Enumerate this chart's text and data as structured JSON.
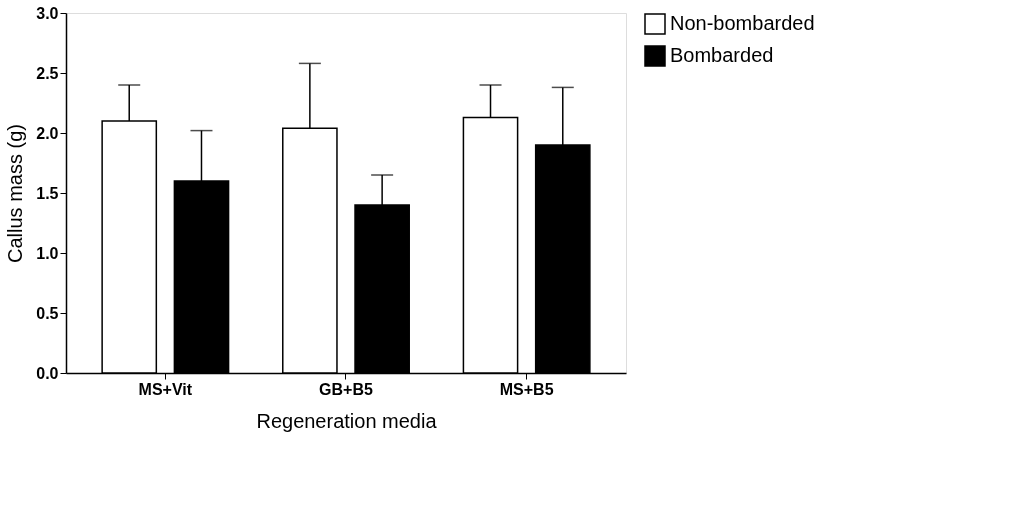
{
  "chart_data": {
    "type": "bar",
    "xlabel": "Regeneration media",
    "ylabel": "Callus mass (g)",
    "categories": [
      "MS+Vit",
      "GB+B5",
      "MS+B5"
    ],
    "series": [
      {
        "name": "Non-bombarded",
        "color": "#ffffff",
        "values": [
          2.1,
          2.04,
          2.13
        ],
        "errors": [
          [
            2.1,
            2.4
          ],
          [
            2.04,
            2.58
          ],
          [
            2.13,
            2.4
          ]
        ]
      },
      {
        "name": "Bombarded",
        "color": "#000000",
        "values": [
          1.6,
          1.4,
          1.9
        ],
        "errors": [
          [
            1.6,
            2.02
          ],
          [
            1.4,
            1.65
          ],
          [
            1.9,
            2.38
          ]
        ]
      }
    ],
    "ylim": [
      0,
      3
    ],
    "yticks": [
      {
        "value": 0,
        "label": "0.0"
      },
      {
        "value": 0.5,
        "label": "0.5"
      },
      {
        "value": 1,
        "label": "1.0"
      },
      {
        "value": 1.5,
        "label": "1.5"
      },
      {
        "value": 2,
        "label": "2.0"
      },
      {
        "value": 2.5,
        "label": "2.5"
      },
      {
        "value": 3,
        "label": "3.0"
      }
    ],
    "legend": "top right",
    "grid": false
  }
}
